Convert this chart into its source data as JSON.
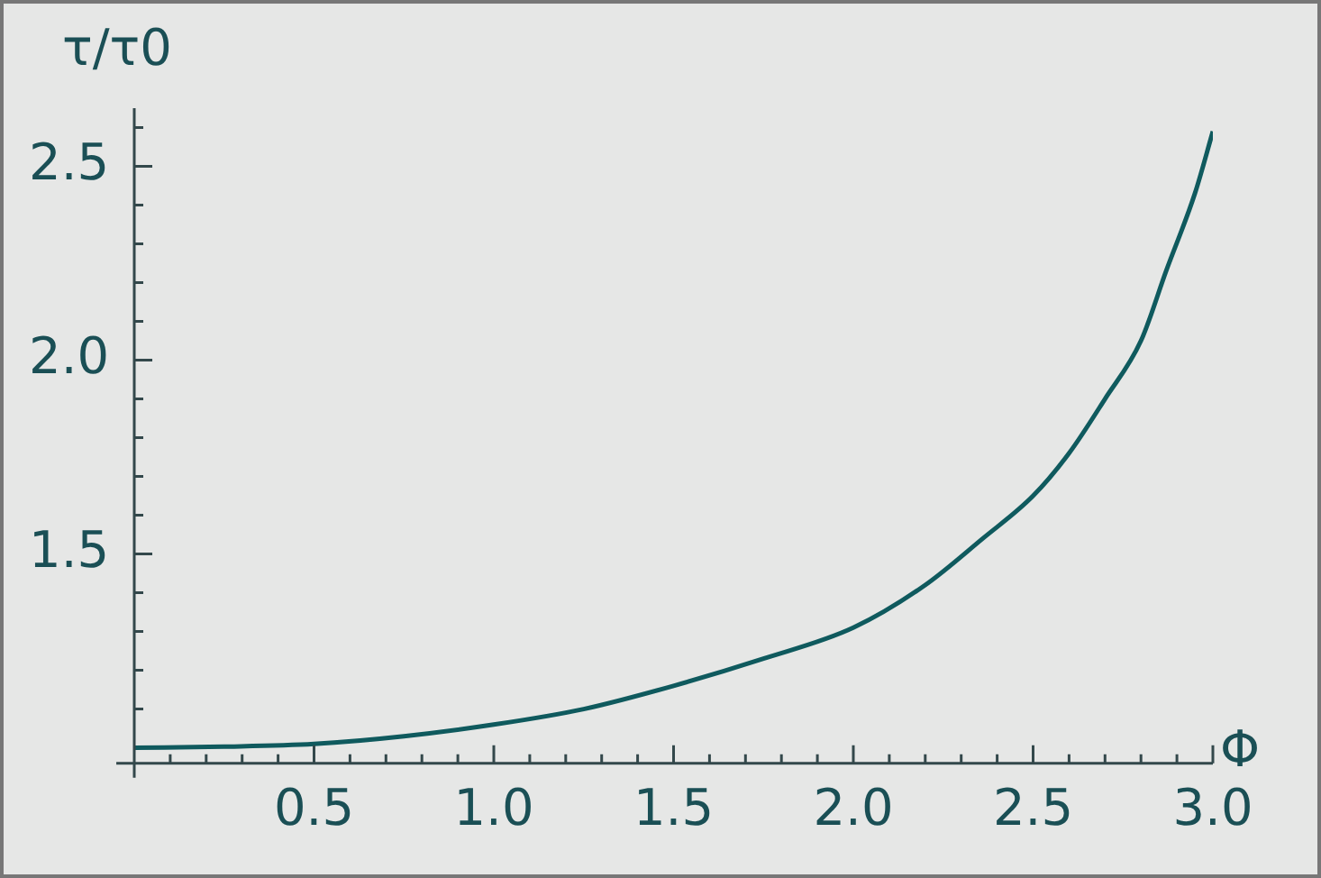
{
  "chart_data": {
    "type": "line",
    "xlabel": "Φ",
    "ylabel": "τ/τ0",
    "x": [
      0,
      0.25,
      0.5,
      0.75,
      1.0,
      1.25,
      1.5,
      1.75,
      2.0,
      2.2,
      2.36,
      2.5,
      2.6,
      2.7,
      2.8,
      2.87,
      2.95,
      3.0
    ],
    "series": [
      {
        "color": "#0f5a5e",
        "values": [
          1.0,
          1.003,
          1.01,
          1.03,
          1.06,
          1.1,
          1.16,
          1.23,
          1.31,
          1.42,
          1.54,
          1.65,
          1.76,
          1.9,
          2.05,
          2.23,
          2.43,
          2.59
        ]
      }
    ],
    "xlim": [
      -0.05,
      3.0
    ],
    "ylim": [
      0.96,
      2.65
    ],
    "xticks": [
      {
        "value": 0.1,
        "label": null
      },
      {
        "value": 0.2,
        "label": null
      },
      {
        "value": 0.3,
        "label": null
      },
      {
        "value": 0.4,
        "label": null
      },
      0.5,
      {
        "value": 0.6,
        "label": null
      },
      {
        "value": 0.7,
        "label": null
      },
      {
        "value": 0.8,
        "label": null
      },
      {
        "value": 0.9,
        "label": null
      },
      {
        "value": 1,
        "label": "1.0"
      },
      {
        "value": 1.1,
        "label": null
      },
      {
        "value": 1.2,
        "label": null
      },
      {
        "value": 1.3,
        "label": null
      },
      {
        "value": 1.4,
        "label": null
      },
      1.5,
      {
        "value": 1.6,
        "label": null
      },
      {
        "value": 1.7,
        "label": null
      },
      {
        "value": 1.8,
        "label": null
      },
      {
        "value": 1.9,
        "label": null
      },
      {
        "value": 2,
        "label": "2.0"
      },
      {
        "value": 2.1,
        "label": null
      },
      {
        "value": 2.2,
        "label": null
      },
      {
        "value": 2.3,
        "label": null
      },
      {
        "value": 2.4,
        "label": null
      },
      2.5,
      {
        "value": 2.6,
        "label": null
      },
      {
        "value": 2.7,
        "label": null
      },
      {
        "value": 2.8,
        "label": null
      },
      {
        "value": 2.9,
        "label": null
      },
      {
        "value": 3,
        "label": "3.0"
      }
    ],
    "yticks": [
      {
        "value": 1.1,
        "label": null
      },
      {
        "value": 1.2,
        "label": null
      },
      {
        "value": 1.3,
        "label": null
      },
      {
        "value": 1.4,
        "label": null
      },
      1.5,
      {
        "value": 1.6,
        "label": null
      },
      {
        "value": 1.7,
        "label": null
      },
      {
        "value": 1.8,
        "label": null
      },
      {
        "value": 1.9,
        "label": null
      },
      {
        "value": 2,
        "label": "2.0"
      },
      {
        "value": 2.1,
        "label": null
      },
      {
        "value": 2.2,
        "label": null
      },
      {
        "value": 2.3,
        "label": null
      },
      {
        "value": 2.4,
        "label": null
      },
      2.5,
      {
        "value": 2.6,
        "label": null
      }
    ],
    "grid": false,
    "legend": false,
    "marker": "none",
    "line_style": "solid"
  }
}
